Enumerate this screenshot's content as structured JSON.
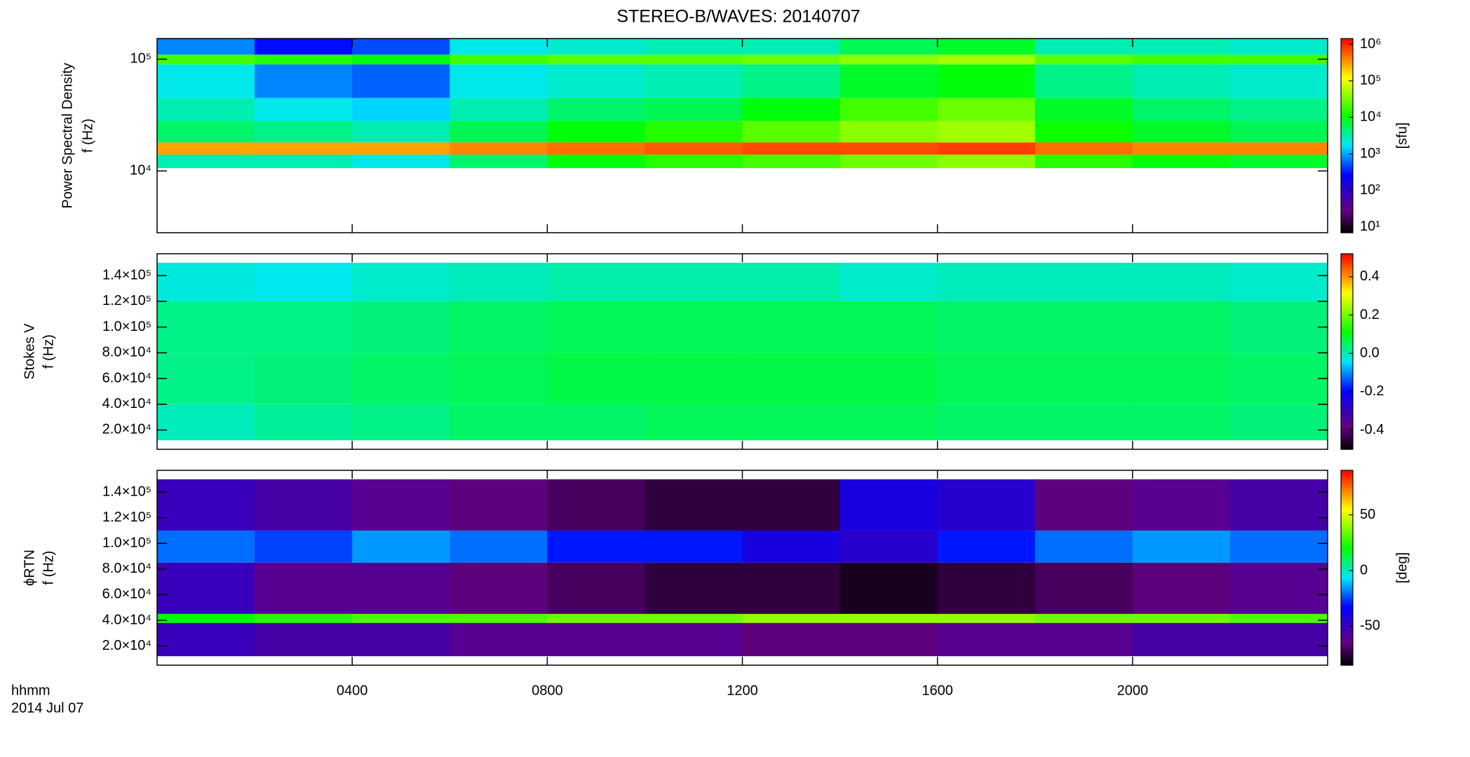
{
  "title": "STEREO-B/WAVES: 20140707",
  "time_label": [
    "hhmm",
    "2014 Jul 07"
  ],
  "chart_data": [
    {
      "type": "heatmap",
      "colormap": "rainbow",
      "ylabel": [
        "Power Spectral Density",
        "f (Hz)"
      ],
      "xlim": [
        0,
        24
      ],
      "ylim": [
        2800,
        153000
      ],
      "ylog": true,
      "yticks": [
        {
          "value": 10000,
          "label": "10⁴"
        },
        {
          "value": 100000,
          "label": "10⁵"
        }
      ],
      "xbins": [
        0,
        2,
        4,
        6,
        8,
        10,
        12,
        14,
        16,
        18,
        20,
        22,
        24
      ],
      "ybins": [
        10600,
        14000,
        18000,
        28000,
        45000,
        90000,
        110000,
        153000
      ],
      "z": [
        [
          3000,
          3000,
          2000,
          5000,
          10000,
          15000,
          20000,
          30000,
          40000,
          15000,
          10000,
          8000
        ],
        [
          300000,
          300000,
          300000,
          400000,
          500000,
          600000,
          700000,
          700000,
          800000,
          500000,
          400000,
          400000
        ],
        [
          5000,
          4000,
          3000,
          6000,
          10000,
          15000,
          25000,
          40000,
          50000,
          12000,
          8000,
          6000
        ],
        [
          3000,
          2000,
          1500,
          3000,
          5000,
          6000,
          10000,
          20000,
          30000,
          8000,
          5000,
          4000
        ],
        [
          2000,
          800,
          600,
          2000,
          2500,
          3000,
          4000,
          8000,
          10000,
          4000,
          3000,
          2500
        ],
        [
          20000,
          15000,
          10000,
          20000,
          25000,
          25000,
          30000,
          40000,
          50000,
          25000,
          20000,
          20000
        ],
        [
          800,
          300,
          500,
          2000,
          2500,
          3000,
          3000,
          6000,
          8000,
          3000,
          3000,
          2500
        ]
      ],
      "colorbar": {
        "zlim": [
          7,
          1430000
        ],
        "log": true,
        "label": "[sfu]",
        "zticks": [
          {
            "value": 10,
            "label": "10¹"
          },
          {
            "value": 100,
            "label": "10²"
          },
          {
            "value": 1000,
            "label": "10³"
          },
          {
            "value": 10000,
            "label": "10⁴"
          },
          {
            "value": 100000,
            "label": "10⁵"
          },
          {
            "value": 1000000,
            "label": "10⁶"
          }
        ]
      }
    },
    {
      "type": "heatmap",
      "colormap": "rainbow",
      "ylabel": [
        "Stokes V",
        "f (Hz)"
      ],
      "xlim": [
        0,
        24
      ],
      "ylim": [
        5000,
        157000
      ],
      "ylog": false,
      "yticks": [
        {
          "value": 20000,
          "label": "2.0×10⁴"
        },
        {
          "value": 40000,
          "label": "4.0×10⁴"
        },
        {
          "value": 60000,
          "label": "6.0×10⁴"
        },
        {
          "value": 80000,
          "label": "8.0×10⁴"
        },
        {
          "value": 100000,
          "label": "1.0×10⁵"
        },
        {
          "value": 120000,
          "label": "1.2×10⁵"
        },
        {
          "value": 140000,
          "label": "1.4×10⁵"
        }
      ],
      "xbins": [
        0,
        2,
        4,
        6,
        8,
        10,
        12,
        14,
        16,
        18,
        20,
        22,
        24
      ],
      "ybins": [
        12000,
        40000,
        80000,
        120000,
        150000
      ],
      "z": [
        [
          0.0,
          0.02,
          0.03,
          0.05,
          0.05,
          0.06,
          0.06,
          0.06,
          0.05,
          0.05,
          0.05,
          0.04
        ],
        [
          0.03,
          0.04,
          0.05,
          0.06,
          0.07,
          0.07,
          0.07,
          0.07,
          0.06,
          0.06,
          0.06,
          0.05
        ],
        [
          0.03,
          0.03,
          0.04,
          0.05,
          0.06,
          0.06,
          0.06,
          0.06,
          0.05,
          0.05,
          0.05,
          0.04
        ],
        [
          -0.02,
          -0.03,
          -0.01,
          0.0,
          0.01,
          0.01,
          0.01,
          -0.01,
          0.0,
          0.0,
          0.0,
          -0.01
        ]
      ],
      "colorbar": {
        "zlim": [
          -0.5,
          0.52
        ],
        "log": false,
        "zticks": [
          -0.4,
          -0.2,
          {
            "value": 0,
            "label": "0.0"
          },
          0.2,
          0.4
        ]
      }
    },
    {
      "type": "heatmap",
      "colormap": "rainbow",
      "ylabel": [
        "ϕRTN",
        "f (Hz)"
      ],
      "xlim": [
        0,
        24
      ],
      "ylim": [
        5000,
        157000
      ],
      "ylog": false,
      "yticks": [
        {
          "value": 20000,
          "label": "2.0×10⁴"
        },
        {
          "value": 40000,
          "label": "4.0×10⁴"
        },
        {
          "value": 60000,
          "label": "6.0×10⁴"
        },
        {
          "value": 80000,
          "label": "8.0×10⁴"
        },
        {
          "value": 100000,
          "label": "1.0×10⁵"
        },
        {
          "value": 120000,
          "label": "1.2×10⁵"
        },
        {
          "value": 140000,
          "label": "1.4×10⁵"
        }
      ],
      "xticks": [
        {
          "value": 4,
          "label": "0400"
        },
        {
          "value": 8,
          "label": "0800"
        },
        {
          "value": 12,
          "label": "1200"
        },
        {
          "value": 16,
          "label": "1600"
        },
        {
          "value": 20,
          "label": "2000"
        }
      ],
      "xbins": [
        0,
        2,
        4,
        6,
        8,
        10,
        12,
        14,
        16,
        18,
        20,
        22,
        24
      ],
      "ybins": [
        12000,
        38000,
        45000,
        85000,
        110000,
        150000
      ],
      "z": [
        [
          -50,
          -55,
          -55,
          -60,
          -60,
          -60,
          -65,
          -65,
          -60,
          -60,
          -55,
          -55
        ],
        [
          20,
          25,
          30,
          30,
          35,
          35,
          40,
          40,
          40,
          35,
          35,
          30
        ],
        [
          -50,
          -60,
          -60,
          -65,
          -70,
          -75,
          -75,
          -80,
          -75,
          -70,
          -65,
          -60
        ],
        [
          -20,
          -25,
          -15,
          -20,
          -30,
          -30,
          -40,
          -45,
          -30,
          -20,
          -15,
          -20
        ],
        [
          -50,
          -55,
          -60,
          -65,
          -70,
          -75,
          -75,
          -40,
          -45,
          -65,
          -60,
          -55
        ]
      ],
      "colorbar": {
        "zlim": [
          -85,
          90
        ],
        "log": false,
        "label": "[deg]",
        "zticks": [
          -50,
          0,
          50
        ]
      }
    }
  ]
}
